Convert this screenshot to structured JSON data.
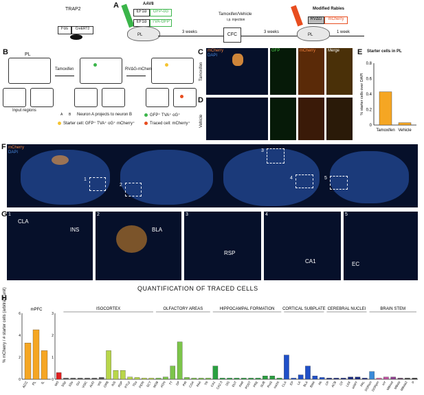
{
  "panels": {
    "A": "A",
    "B": "B",
    "C": "C",
    "D": "D",
    "E": "E",
    "F": "F",
    "G": "G",
    "H": "H"
  },
  "panelA": {
    "mouse_label": "TRAP2",
    "fos_label": "Fos",
    "cre_label": "CreERT2",
    "aav_label": "AAV8",
    "ef1a_1": "EF1α",
    "ef1a_2": "EF1α",
    "go_label": "GFP-oG",
    "tva_label": "TVA-GFP",
    "pl_1": "PL",
    "weeks1": "3 weeks",
    "tam_label": "Tamoxifen/Vehicle",
    "ip_label": "i.p. injection",
    "cfc_label": "CFC",
    "weeks2": "3 weeks",
    "mod_rabies": "Modified Rabies",
    "rvdg": "RVΔG",
    "mcherry": "mCherry",
    "pl_2": "PL",
    "week1": "1 week"
  },
  "panelB": {
    "pl": "PL",
    "input_regions": "Input regions",
    "tamoxifen": "Tamoxifen",
    "rvdg": "RVΔG-mCherry",
    "legend_ab": "Neuron A projects to neuron B",
    "legend_a": "A",
    "legend_b": "B",
    "legend_green": "GFP⁺ TVA⁺ oG⁺",
    "legend_yellow": "Starter cell: GFP⁺ TVA⁺ oG⁺ mCherry⁺",
    "legend_red": "Traced cell: mCherry⁺"
  },
  "panelC": {
    "mcherry": "mCherry",
    "dapi": "DAPI",
    "gfp": "GFP",
    "mcherry2": "mCherry",
    "merge": "Merge",
    "side": "Tamoxifen"
  },
  "panelD": {
    "side": "Vehicle"
  },
  "panelE": {
    "title": "Starter cells in PL",
    "ylabel": "% starter cells over DAPI",
    "ticks": [
      "0",
      "0.2",
      "0.4",
      "0.6",
      "0.8"
    ]
  },
  "panelF": {
    "mcherry": "mCherry",
    "dapi": "DAPI",
    "nums": [
      "1",
      "2",
      "3",
      "4",
      "5"
    ]
  },
  "panelG": {
    "nums": [
      "1",
      "2",
      "3",
      "4",
      "5"
    ],
    "regions": [
      "CLA",
      "INS",
      "BLA",
      "RSP",
      "CA1",
      "EC"
    ]
  },
  "panelH": {
    "title": "QUANTIFICATION OF TRACED CELLS",
    "ylabel": "% mCherry / # starter cells",
    "ylabel2": "(arbitrary unit)",
    "groups": [
      "mPFC",
      "ISOCORTEX",
      "OLFACTORY AREAS",
      "HIPPOCAMPAL FORMATION",
      "CORTICAL SUBPLATE",
      "CEREBRAL NUCLEI",
      "BRAIN STEM"
    ]
  },
  "chart_data": [
    {
      "type": "bar",
      "title": "Starter cells in PL",
      "ylabel": "% starter cells over DAPI",
      "categories": [
        "Tamoxifen",
        "Vehicle"
      ],
      "values": [
        0.43,
        0.03
      ],
      "ylim": [
        0,
        0.8
      ],
      "colors": [
        "#f5a623",
        "#f5a623"
      ]
    },
    {
      "type": "bar",
      "title": "QUANTIFICATION OF TRACED CELLS",
      "ylabel": "% mCherry / # starter cells (arbitrary unit)",
      "ylim": [
        0,
        6
      ],
      "categories": [
        "ACC",
        "PL",
        "IL"
      ],
      "values": [
        3.3,
        4.5,
        2.6
      ],
      "colors": [
        "#f5a623",
        "#f5a623",
        "#f5a623"
      ]
    },
    {
      "type": "bar",
      "ylim": [
        0,
        3
      ],
      "categories": [
        "MO",
        "SSp",
        "SSs",
        "GU",
        "VISC",
        "AUD",
        "VIS",
        "ORB",
        "INS",
        "RSP",
        "PTLp",
        "TEa",
        "PERI",
        "ECT",
        "MOB",
        "AON",
        "TT",
        "DP",
        "PIR",
        "COA",
        "PAA",
        "TR",
        "CA1",
        "CA2-3",
        "DG",
        "ENT",
        "PAR",
        "POST",
        "PRE",
        "SUB",
        "ProS",
        "HATA",
        "CLA",
        "EP",
        "LA",
        "BLA",
        "BMA",
        "PA",
        "CP",
        "ACB",
        "OT",
        "LSX",
        "sAMY",
        "PAL",
        "DORsm",
        "DORpm",
        "HY",
        "MBmot",
        "MBsta",
        "MBsta2",
        "P"
      ],
      "values": [
        0.3,
        0.05,
        0.05,
        0.05,
        0.05,
        0.05,
        0.08,
        1.3,
        0.4,
        0.4,
        0.1,
        0.08,
        0.05,
        0.05,
        0.05,
        0.1,
        0.6,
        1.7,
        0.08,
        0.05,
        0.05,
        0.05,
        0.6,
        0.05,
        0.05,
        0.05,
        0.05,
        0.05,
        0.05,
        0.15,
        0.15,
        0.05,
        1.1,
        0.05,
        0.2,
        0.6,
        0.15,
        0.08,
        0.05,
        0.05,
        0.05,
        0.1,
        0.1,
        0.05,
        0.35,
        0.05,
        0.1,
        0.1,
        0.05,
        0.05,
        0.05
      ],
      "colors": [
        "#e02020",
        "#555",
        "#555",
        "#555",
        "#555",
        "#555",
        "#555",
        "#b8d64a",
        "#b8d64a",
        "#b8d64a",
        "#b8d64a",
        "#b8d64a",
        "#b8d64a",
        "#b8d64a",
        "#7cc44a",
        "#7cc44a",
        "#7cc44a",
        "#7cc44a",
        "#7cc44a",
        "#7cc44a",
        "#7cc44a",
        "#7cc44a",
        "#2aa040",
        "#2aa040",
        "#2aa040",
        "#2aa040",
        "#2aa040",
        "#2aa040",
        "#2aa040",
        "#2aa040",
        "#2aa040",
        "#2aa040",
        "#2050c8",
        "#2050c8",
        "#2050c8",
        "#2050c8",
        "#2050c8",
        "#2050c8",
        "#1a2a80",
        "#1a2a80",
        "#1a2a80",
        "#1a2a80",
        "#1a2a80",
        "#1a2a80",
        "#3a8ad8",
        "#e060a0",
        "#c050a0",
        "#904090",
        "#604060",
        "#404040",
        "#303030"
      ]
    }
  ]
}
